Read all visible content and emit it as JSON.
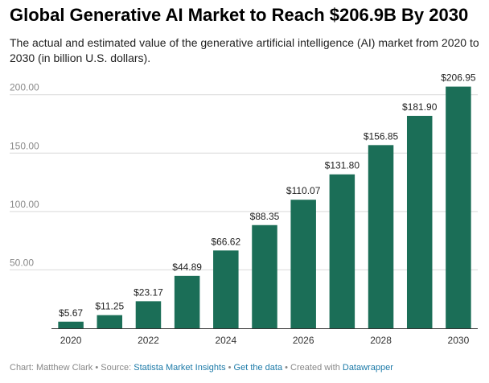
{
  "title": "Global Generative AI Market to Reach $206.9B By 2030",
  "subtitle": "The actual and estimated value of the generative artificial intelligence (AI) market from 2020 to 2030 (in billion U.S. dollars).",
  "colors": {
    "bar": "#1b6e57",
    "grid": "#d9d9d9",
    "axis_text": "#8a8a8a",
    "label_text": "#222222"
  },
  "chart_data": {
    "type": "bar",
    "categories": [
      "2020",
      "2021",
      "2022",
      "2023",
      "2024",
      "2025",
      "2026",
      "2027",
      "2028",
      "2029",
      "2030"
    ],
    "values": [
      5.67,
      11.25,
      23.17,
      44.89,
      66.62,
      88.35,
      110.07,
      131.8,
      156.85,
      181.9,
      206.95
    ],
    "data_labels": [
      "$5.67",
      "$11.25",
      "$23.17",
      "$44.89",
      "$66.62",
      "$88.35",
      "$110.07",
      "$131.80",
      "$156.85",
      "$181.90",
      "$206.95"
    ],
    "x_tick_labels": [
      "2020",
      "",
      "2022",
      "",
      "2024",
      "",
      "2026",
      "",
      "2028",
      "",
      "2030"
    ],
    "y_ticks": [
      50,
      100,
      150,
      200
    ],
    "y_tick_labels": [
      "50.00",
      "100.00",
      "150.00",
      "200.00"
    ],
    "ylim": [
      0,
      215
    ],
    "grid": true,
    "xlabel": "",
    "ylabel": ""
  },
  "footer": {
    "prefix": "Chart: Matthew Clark • Source: ",
    "source_link": "Statista Market Insights",
    "sep1": " • ",
    "data_link": "Get the data",
    "sep2": " • Created with ",
    "tool_link": "Datawrapper"
  }
}
